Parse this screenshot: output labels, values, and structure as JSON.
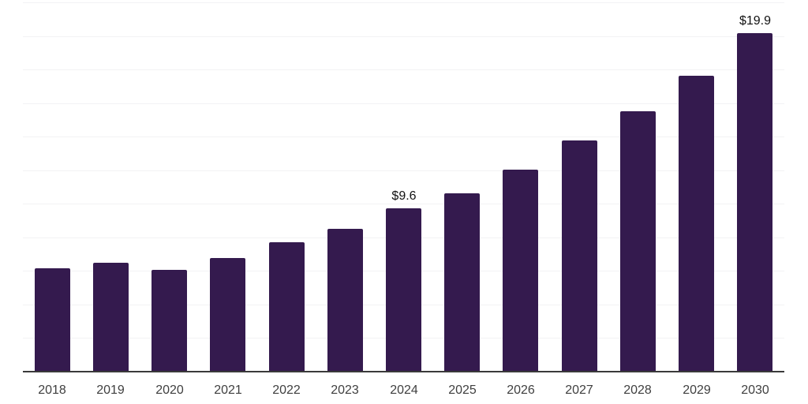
{
  "chart_data": {
    "type": "bar",
    "title": "",
    "xlabel": "",
    "ylabel": "",
    "categories": [
      "2018",
      "2019",
      "2020",
      "2021",
      "2022",
      "2023",
      "2024",
      "2025",
      "2026",
      "2027",
      "2028",
      "2029",
      "2030"
    ],
    "values": [
      6.1,
      6.4,
      6.0,
      6.7,
      7.6,
      8.4,
      9.6,
      10.5,
      11.9,
      13.6,
      15.3,
      17.4,
      19.9
    ],
    "value_prefix": "$",
    "bar_labels": {
      "2024": "$9.6",
      "2030": "$19.9"
    },
    "ylim": [
      0,
      22
    ],
    "gridline_step": 2,
    "grid": true,
    "legend": "none",
    "y_axis_tick_labels_visible": false,
    "colors": {
      "bar": "#341a4e",
      "gridline": "#f2f2f4",
      "axis_line": "#3a3a3a",
      "year_label": "#3f3f3f",
      "value_label": "#121212",
      "background": "#ffffff"
    }
  }
}
